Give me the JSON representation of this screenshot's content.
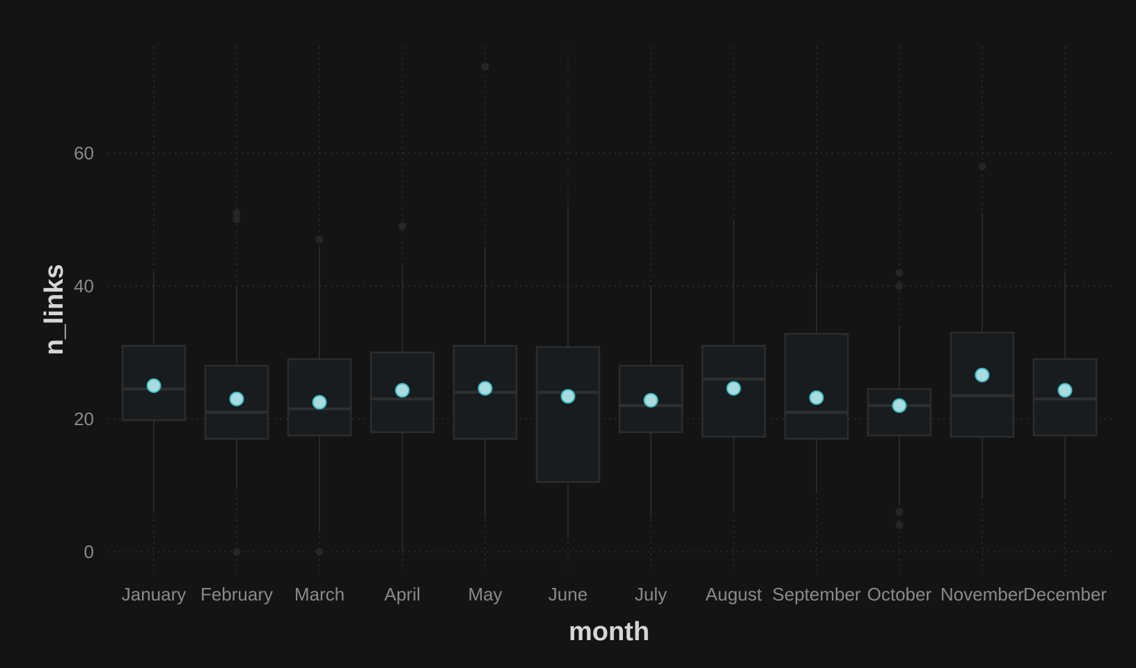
{
  "chart_data": {
    "type": "boxplot",
    "title": "",
    "xlabel": "month",
    "ylabel": "n_links",
    "ylim": [
      -3,
      76
    ],
    "yticks": [
      0,
      20,
      40,
      60
    ],
    "grid": true,
    "legend": "none",
    "colors": {
      "background": "#141414",
      "grid": "#333333",
      "box_fill": "#181c1f",
      "box_stroke": "#2d2d2d",
      "whisker": "#2a2a2a",
      "median": "#2f2f2f",
      "outlier": "#262626",
      "mean_fill": "#a8dce0",
      "mean_stroke": "#3fbcc2"
    },
    "categories": [
      "January",
      "February",
      "March",
      "April",
      "May",
      "June",
      "July",
      "August",
      "September",
      "October",
      "November",
      "December"
    ],
    "boxes": [
      {
        "month": "January",
        "min": 6,
        "q1": 19.8,
        "median": 24.5,
        "q3": 31,
        "max": 42,
        "mean": 25,
        "outliers": []
      },
      {
        "month": "February",
        "min": 10,
        "q1": 17,
        "median": 21,
        "q3": 28,
        "max": 40,
        "mean": 23,
        "outliers": [
          0,
          50,
          51
        ]
      },
      {
        "month": "March",
        "min": 3,
        "q1": 17.5,
        "median": 21.5,
        "q3": 29,
        "max": 46,
        "mean": 22.5,
        "outliers": [
          0,
          47
        ]
      },
      {
        "month": "April",
        "min": 0,
        "q1": 18,
        "median": 23,
        "q3": 30,
        "max": 43,
        "mean": 24.3,
        "outliers": [
          49
        ]
      },
      {
        "month": "May",
        "min": 5,
        "q1": 17,
        "median": 24,
        "q3": 31,
        "max": 46,
        "mean": 24.6,
        "outliers": [
          73
        ]
      },
      {
        "month": "June",
        "min": 2,
        "q1": 10.5,
        "median": 24,
        "q3": 30.8,
        "max": 52,
        "mean": 23.4,
        "outliers": []
      },
      {
        "month": "July",
        "min": 5,
        "q1": 18,
        "median": 22,
        "q3": 28,
        "max": 40,
        "mean": 22.8,
        "outliers": []
      },
      {
        "month": "August",
        "min": 6,
        "q1": 17.3,
        "median": 26,
        "q3": 31,
        "max": 50,
        "mean": 24.6,
        "outliers": []
      },
      {
        "month": "September",
        "min": 9,
        "q1": 17,
        "median": 21,
        "q3": 32.8,
        "max": 42,
        "mean": 23.2,
        "outliers": []
      },
      {
        "month": "October",
        "min": 7,
        "q1": 17.5,
        "median": 22,
        "q3": 24.5,
        "max": 34,
        "mean": 22,
        "outliers": [
          4,
          6,
          40,
          42
        ]
      },
      {
        "month": "November",
        "min": 8,
        "q1": 17.3,
        "median": 23.5,
        "q3": 33,
        "max": 51,
        "mean": 26.6,
        "outliers": [
          58
        ]
      },
      {
        "month": "December",
        "min": 8,
        "q1": 17.5,
        "median": 23,
        "q3": 29,
        "max": 42,
        "mean": 24.3,
        "outliers": []
      }
    ]
  }
}
